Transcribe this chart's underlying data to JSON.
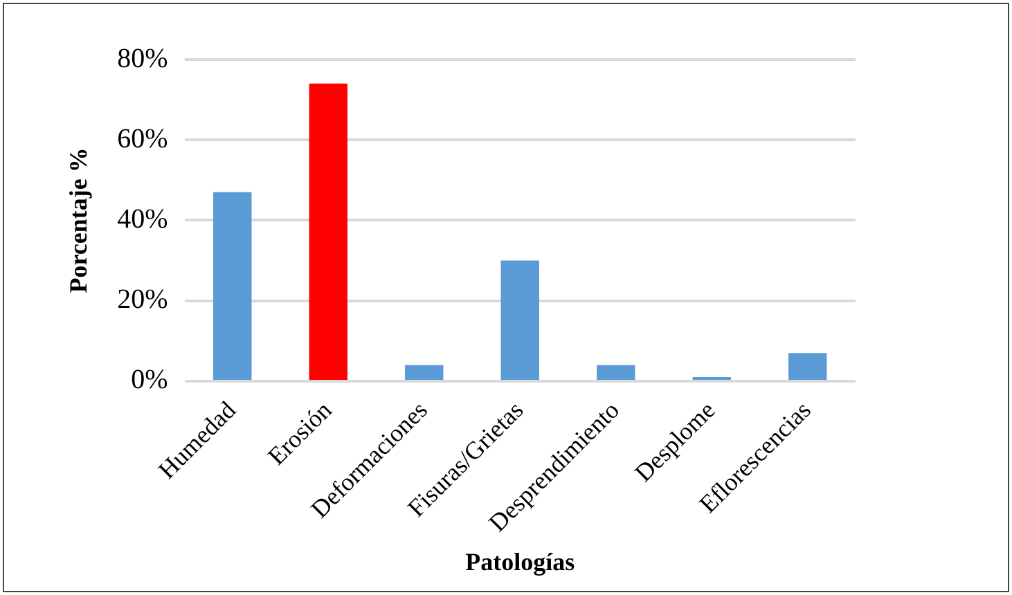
{
  "chart_data": {
    "type": "bar",
    "xlabel": "Patologías",
    "ylabel": "Porcentaje %",
    "categories": [
      "Humedad",
      "Erosión",
      "Deformaciones",
      "Fisuras/Grietas",
      "Desprendimiento",
      "Desplome",
      "Eflorescencias"
    ],
    "values": [
      47,
      74,
      4,
      30,
      4,
      1,
      7
    ],
    "colors": [
      "#5b9bd5",
      "#ff0000",
      "#5b9bd5",
      "#5b9bd5",
      "#5b9bd5",
      "#5b9bd5",
      "#5b9bd5"
    ],
    "ylim": [
      0,
      80
    ],
    "yticks": [
      {
        "value": 0,
        "label": "0%"
      },
      {
        "value": 20,
        "label": "20%"
      },
      {
        "value": 40,
        "label": "40%"
      },
      {
        "value": 60,
        "label": "60%"
      },
      {
        "value": 80,
        "label": "80%"
      }
    ],
    "grid": "y",
    "legend": false
  }
}
